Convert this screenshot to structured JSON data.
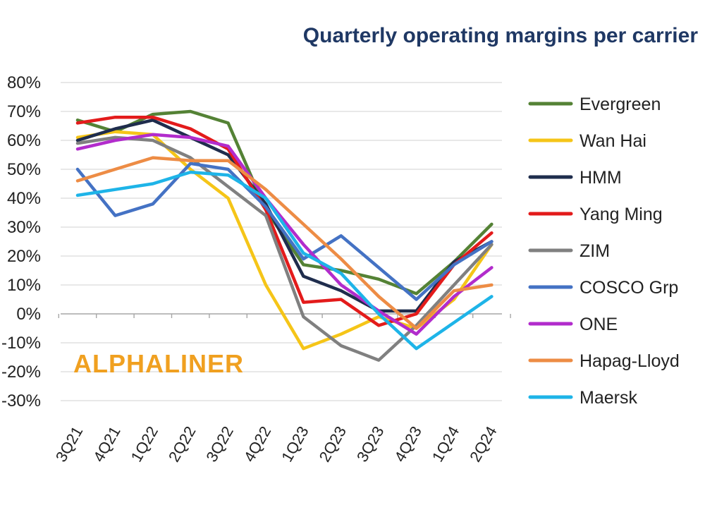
{
  "chart_data": {
    "type": "line",
    "title": "Quarterly operating margins per carrier",
    "watermark": "ALPHALINER",
    "xlabel": "",
    "ylabel": "",
    "categories": [
      "3Q21",
      "4Q21",
      "1Q22",
      "2Q22",
      "3Q22",
      "4Q22",
      "1Q23",
      "2Q23",
      "3Q23",
      "4Q23",
      "1Q24",
      "2Q24"
    ],
    "ylim": [
      -30,
      80
    ],
    "ytick_values": [
      80,
      70,
      60,
      50,
      40,
      30,
      20,
      10,
      0,
      -10,
      -20,
      -30
    ],
    "ytick_labels": [
      "80%",
      "70%",
      "60%",
      "50%",
      "40%",
      "30%",
      "20%",
      "10%",
      "0%",
      "-10%",
      "-20%",
      "-30%"
    ],
    "grid": true,
    "legend_position": "right",
    "series": [
      {
        "name": "Evergreen",
        "color": "#548235",
        "values": [
          67,
          63,
          69,
          70,
          66,
          36,
          17,
          15,
          12,
          7,
          18,
          31
        ]
      },
      {
        "name": "Wan Hai",
        "color": "#f5c518",
        "values": [
          61,
          63,
          62,
          50,
          40,
          10,
          -12,
          -7,
          -1,
          -5,
          5,
          24
        ]
      },
      {
        "name": "HMM",
        "color": "#1f2d4d",
        "values": [
          60,
          64,
          67,
          61,
          55,
          38,
          13,
          8,
          1,
          1,
          18,
          25
        ]
      },
      {
        "name": "Yang Ming",
        "color": "#e31b1b",
        "values": [
          66,
          68,
          68,
          64,
          57,
          36,
          4,
          5,
          -4,
          0,
          17,
          28
        ]
      },
      {
        "name": "ZIM",
        "color": "#808080",
        "values": [
          59,
          61,
          60,
          54,
          44,
          34,
          -1,
          -11,
          -16,
          -4,
          10,
          24
        ]
      },
      {
        "name": "COSCO Grp",
        "color": "#4472c4",
        "values": [
          50,
          34,
          38,
          52,
          50,
          37,
          19,
          27,
          16,
          5,
          17,
          25
        ]
      },
      {
        "name": "ONE",
        "color": "#b22ccc",
        "values": [
          57,
          60,
          62,
          61,
          58,
          40,
          24,
          10,
          1,
          -7,
          6,
          16
        ]
      },
      {
        "name": "Hapag-Lloyd",
        "color": "#ed8c45",
        "values": [
          46,
          50,
          54,
          53,
          53,
          43,
          31,
          19,
          6,
          -5,
          8,
          10
        ]
      },
      {
        "name": "Maersk",
        "color": "#1eb4e8",
        "values": [
          41,
          43,
          45,
          49,
          48,
          40,
          21,
          14,
          0,
          -12,
          -3,
          6
        ]
      }
    ]
  }
}
